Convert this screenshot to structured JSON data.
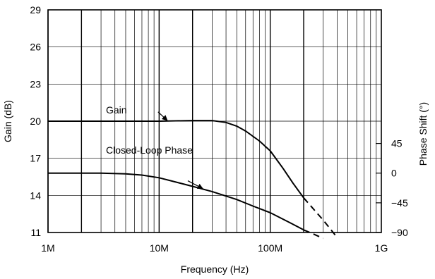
{
  "chart_data": {
    "type": "line",
    "xlabel": "Frequency (Hz)",
    "ylabel": "Gain (dB)",
    "y2label": "Phase Shift (°)",
    "x_scale": "log",
    "xlim": [
      1000000,
      1000000000
    ],
    "ylim": [
      11,
      29
    ],
    "y2lim": [
      -90,
      247.5
    ],
    "grid": true,
    "x_ticks": [
      {
        "value": 1000000,
        "label": "1M"
      },
      {
        "value": 10000000,
        "label": "10M"
      },
      {
        "value": 100000000,
        "label": "100M"
      },
      {
        "value": 1000000000,
        "label": "1G"
      }
    ],
    "y_ticks": [
      {
        "value": 11,
        "label": "11"
      },
      {
        "value": 14,
        "label": "14"
      },
      {
        "value": 17,
        "label": "17"
      },
      {
        "value": 20,
        "label": "20"
      },
      {
        "value": 23,
        "label": "23"
      },
      {
        "value": 26,
        "label": "26"
      },
      {
        "value": 29,
        "label": "29"
      }
    ],
    "y2_ticks": [
      {
        "value": -90,
        "label": "−90"
      },
      {
        "value": -45,
        "label": "−45"
      },
      {
        "value": 0,
        "label": "0"
      },
      {
        "value": 45,
        "label": "45"
      }
    ],
    "series": [
      {
        "name": "Gain",
        "axis": "left",
        "x": [
          1000000,
          5000000,
          10000000,
          20000000,
          30000000,
          40000000,
          50000000,
          60000000,
          80000000,
          100000000,
          130000000,
          160000000,
          200000000
        ],
        "y": [
          20,
          20,
          20,
          20.05,
          20.05,
          19.9,
          19.6,
          19.2,
          18.4,
          17.6,
          16.2,
          15.0,
          13.8
        ],
        "extrapolated": {
          "x": [
            200000000,
            300000000,
            400000000
          ],
          "y": [
            13.8,
            12.0,
            10.6
          ]
        }
      },
      {
        "name": "Closed-Loop Phase",
        "axis": "right",
        "x": [
          1000000,
          3000000,
          5000000,
          7000000,
          10000000,
          20000000,
          30000000,
          50000000,
          70000000,
          100000000,
          150000000,
          200000000
        ],
        "y": [
          0,
          0,
          -1,
          -3,
          -7,
          -20,
          -28,
          -40,
          -50,
          -60,
          -75,
          -86
        ],
        "extrapolated": {
          "x": [
            200000000,
            250000000,
            300000000
          ],
          "y": [
            -86,
            -93,
            -99
          ]
        }
      }
    ],
    "annotations": [
      {
        "text": "Gain",
        "series": "Gain",
        "arrow_to_x": 12000000
      },
      {
        "text": "Closed-Loop Phase",
        "series": "Closed-Loop Phase",
        "arrow_to_x": 25000000
      }
    ]
  }
}
